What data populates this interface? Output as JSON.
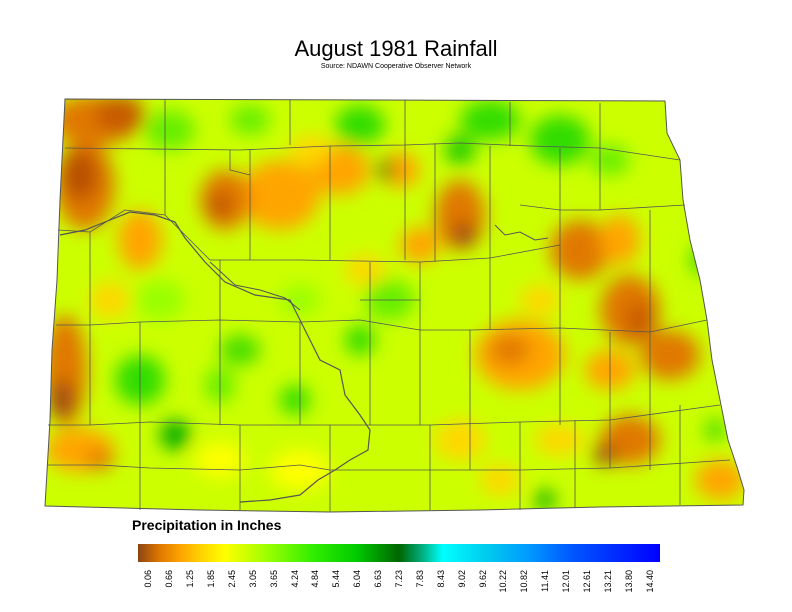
{
  "map": {
    "title": "August 1981 Rainfall",
    "source": "Source: NDAWN Cooperative Observer Network"
  },
  "legend": {
    "title": "Precipitation in Inches",
    "ticks": [
      "0.06",
      "0.66",
      "1.25",
      "1.85",
      "2.45",
      "3.05",
      "3.65",
      "4.24",
      "4.84",
      "5.44",
      "6.04",
      "6.63",
      "7.23",
      "7.83",
      "8.43",
      "9.02",
      "9.62",
      "10.22",
      "10.82",
      "11.41",
      "12.01",
      "12.61",
      "13.21",
      "13.80",
      "14.40"
    ],
    "stops": [
      {
        "value": 0.06,
        "color": "#8b4513"
      },
      {
        "value": 0.66,
        "color": "#e07800"
      },
      {
        "value": 1.25,
        "color": "#ffa500"
      },
      {
        "value": 1.85,
        "color": "#ffd700"
      },
      {
        "value": 2.45,
        "color": "#ffff00"
      },
      {
        "value": 3.05,
        "color": "#ccff00"
      },
      {
        "value": 3.65,
        "color": "#99ff00"
      },
      {
        "value": 4.84,
        "color": "#33ee00"
      },
      {
        "value": 6.04,
        "color": "#00cc00"
      },
      {
        "value": 7.23,
        "color": "#006600"
      },
      {
        "value": 7.83,
        "color": "#00aa77"
      },
      {
        "value": 8.43,
        "color": "#00ffff"
      },
      {
        "value": 9.62,
        "color": "#00ccee"
      },
      {
        "value": 10.82,
        "color": "#0099ff"
      },
      {
        "value": 12.01,
        "color": "#0055ff"
      },
      {
        "value": 14.4,
        "color": "#0000ff"
      }
    ]
  }
}
